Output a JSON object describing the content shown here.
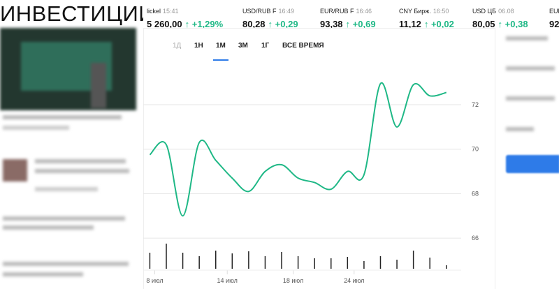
{
  "header": {
    "title": "ИНВЕСТИЦИИ"
  },
  "ticker": [
    {
      "name": "lickel",
      "time": "15:41",
      "price": "5 260,00",
      "change": "↑ +1,29%"
    },
    {
      "name": "USD/RUB F",
      "time": "16:49",
      "price": "80,28",
      "change": "↑ +0,29"
    },
    {
      "name": "EUR/RUB F",
      "time": "16:46",
      "price": "93,38",
      "change": "↑ +0,69"
    },
    {
      "name": "CNY Бирж.",
      "time": "16:50",
      "price": "11,12",
      "change": "↑ +0,02"
    },
    {
      "name": "USD ЦБ",
      "time": "06.08",
      "price": "80,05",
      "change": "↑ +0,38"
    },
    {
      "name": "EUR",
      "price": "92"
    }
  ],
  "tabs": [
    {
      "label": "1Д",
      "disabled": true
    },
    {
      "label": "1Н"
    },
    {
      "label": "1М",
      "active": true
    },
    {
      "label": "3М"
    },
    {
      "label": "1Г"
    },
    {
      "label": "ВСЕ ВРЕМЯ"
    }
  ],
  "chart_data": {
    "type": "line",
    "color": "#1fb886",
    "x": [
      0,
      1,
      2,
      3,
      4,
      5,
      6,
      7,
      8,
      9,
      10,
      11,
      12,
      13,
      14,
      15,
      16,
      17,
      18
    ],
    "values": [
      69.75,
      70.2,
      67.0,
      70.3,
      69.5,
      68.7,
      68.1,
      69.0,
      69.3,
      68.7,
      68.5,
      68.2,
      69.0,
      68.85,
      72.95,
      71.0,
      72.9,
      72.4,
      72.55
    ],
    "volumes": [
      23,
      36,
      23,
      18,
      26,
      22,
      25,
      18,
      24,
      18,
      15,
      15,
      17,
      11,
      18,
      13,
      26,
      16,
      5
    ],
    "xlim": [
      -0.4,
      18.9
    ],
    "ylim": [
      65.5,
      74.2
    ],
    "yticks": [
      66,
      68,
      70,
      72
    ],
    "grid": true,
    "xticks": [
      {
        "value": 0.3,
        "label": "8 июл"
      },
      {
        "value": 4.7,
        "label": "14 июл"
      },
      {
        "value": 8.7,
        "label": "18 июл"
      },
      {
        "value": 12.4,
        "label": "24 июл"
      }
    ]
  }
}
